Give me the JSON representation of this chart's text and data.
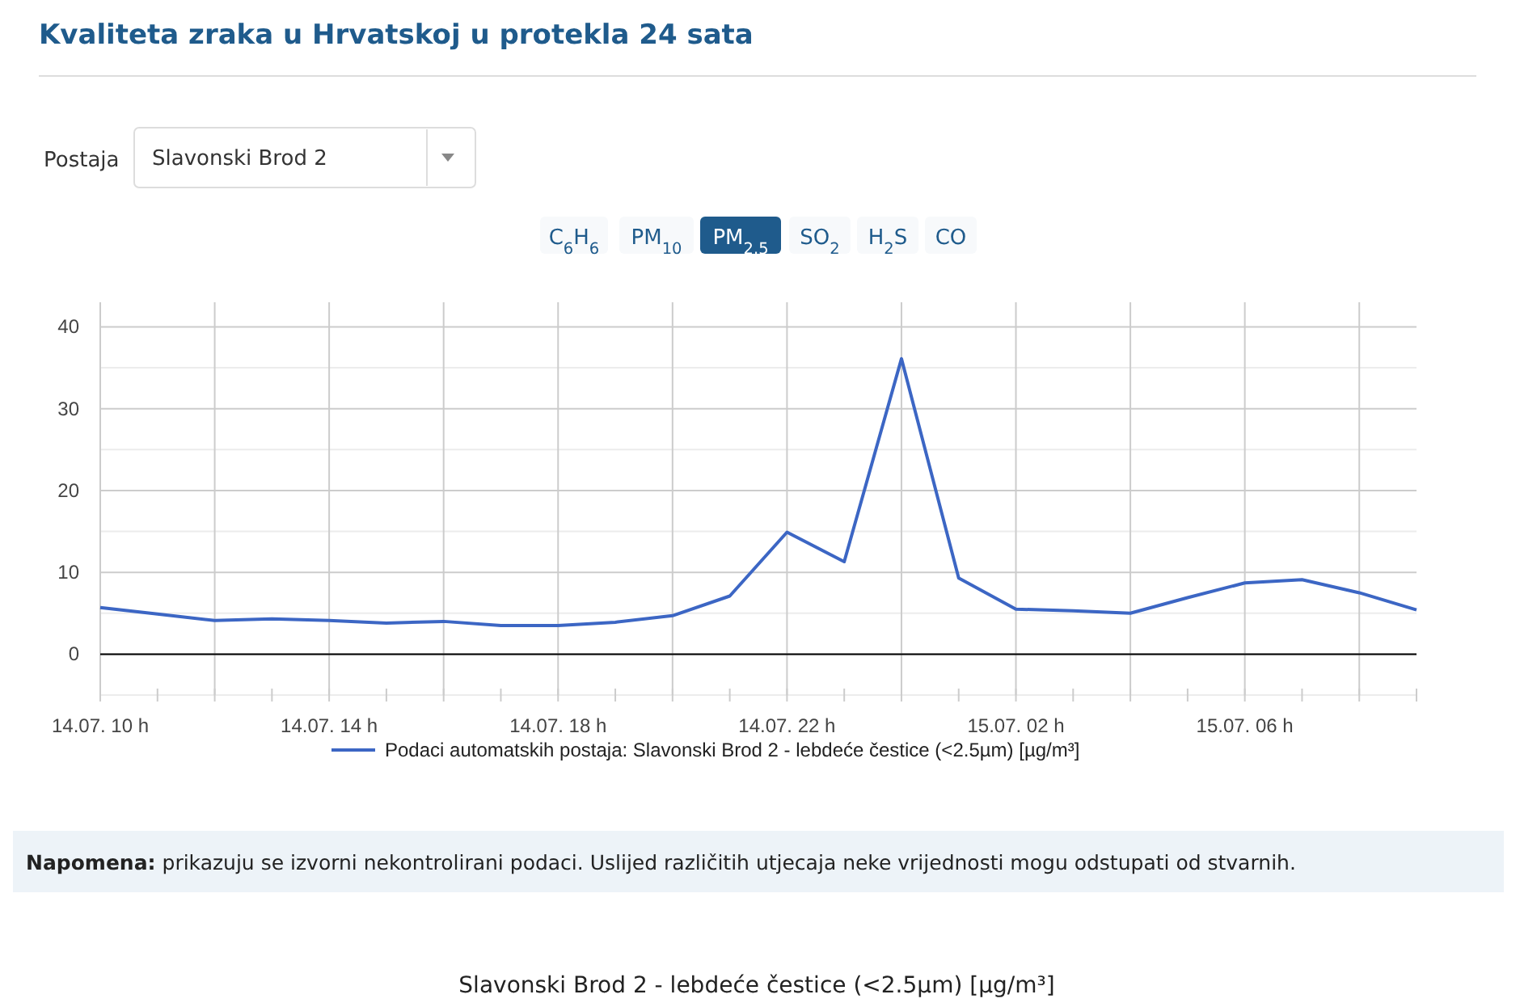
{
  "chart_data": {
    "type": "line",
    "title": "Kvaliteta zraka u Hrvatskoj u protekla 24 sata",
    "categories": [
      "14.07. 10 h",
      null,
      null,
      null,
      "14.07. 14 h",
      null,
      null,
      null,
      "14.07. 18 h",
      null,
      null,
      null,
      "14.07. 22 h",
      null,
      null,
      null,
      "15.07. 02 h",
      null,
      null,
      null,
      "15.07. 06 h",
      null,
      null,
      null
    ],
    "series": [
      {
        "name": "Podaci automatskih postaja: Slavonski Brod 2 - lebdeće čestice (<2.5µm) [µg/m³]",
        "color": "#3c66c4",
        "values": [
          5.7,
          4.9,
          4.1,
          4.3,
          4.1,
          3.8,
          4.0,
          3.5,
          3.5,
          3.9,
          4.7,
          7.1,
          14.9,
          11.3,
          36.1,
          9.3,
          5.5,
          5.3,
          5.0,
          6.9,
          8.7,
          9.1,
          7.5,
          5.4
        ]
      }
    ],
    "ylim": [
      -5,
      43
    ],
    "yticks": [
      {
        "value": -5,
        "label": null
      },
      0,
      {
        "value": 5,
        "label": null
      },
      10,
      {
        "value": 15,
        "label": null
      },
      20,
      {
        "value": 25,
        "label": null
      },
      30,
      {
        "value": 35,
        "label": null
      },
      40
    ],
    "ref_lines": [
      {
        "axis": "y",
        "value": 0,
        "color": "#000000"
      }
    ],
    "grid": true,
    "legend": "bottom",
    "marker": "none",
    "line_style": "solid",
    "annotations": [
      "Postaja",
      "Slavonski Brod 2",
      "C$_{6}$H$_{6}$",
      "PM$_{10}$",
      "PM$_{2.5}$",
      "SO$_{2}$",
      "H$_{2}$S",
      "CO",
      "Napomena: prikazuju se izvorni nekontrolirani podaci. Uslijed različitih utjecaja neke vrijednosti mogu odstupati od stvarnih.",
      "Slavonski Brod 2 - lebdeće čestice (<2.5µm) [µg/m³]"
    ]
  }
}
